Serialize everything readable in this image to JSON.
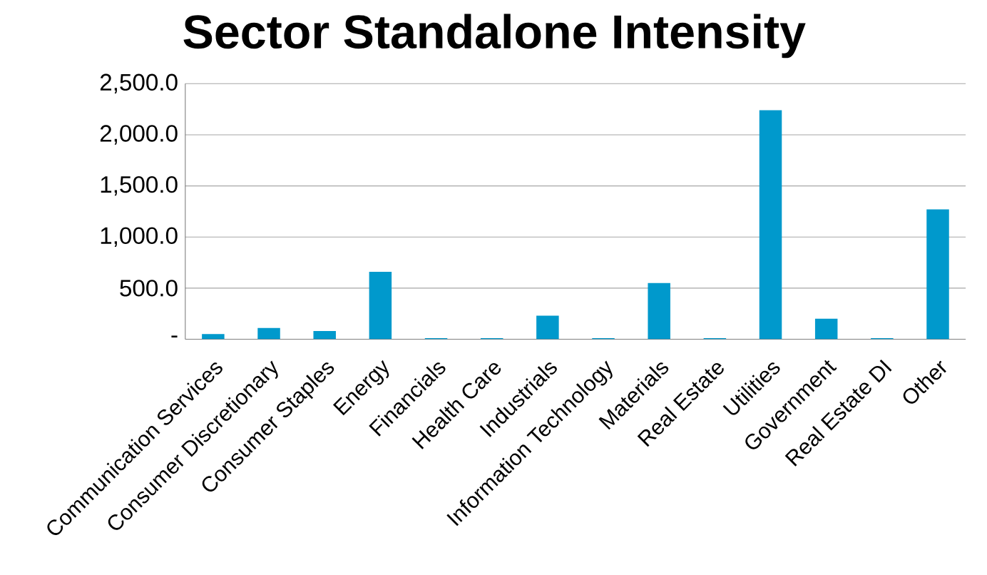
{
  "chart_data": {
    "type": "bar",
    "title": "Sector Standalone Intensity",
    "categories": [
      "Communication Services",
      "Consumer Discretionary",
      "Consumer Staples",
      "Energy",
      "Financials",
      "Health Care",
      "Industrials",
      "Information Technology",
      "Materials",
      "Real Estate",
      "Utilities",
      "Government",
      "Real Estate DI",
      "Other"
    ],
    "values": [
      50,
      110,
      80,
      660,
      10,
      10,
      230,
      10,
      550,
      10,
      2240,
      200,
      10,
      1270
    ],
    "color": "#0099cc",
    "ylim": [
      0,
      2500
    ],
    "yticks": [
      {
        "value": 0,
        "label": "-"
      },
      {
        "value": 500,
        "label": "500.0"
      },
      {
        "value": 1000,
        "label": "1,000.0"
      },
      {
        "value": 1500,
        "label": "1,500.0"
      },
      {
        "value": 2000,
        "label": "2,000.0"
      },
      {
        "value": 2500,
        "label": "2,500.0"
      }
    ],
    "grid": "y"
  }
}
